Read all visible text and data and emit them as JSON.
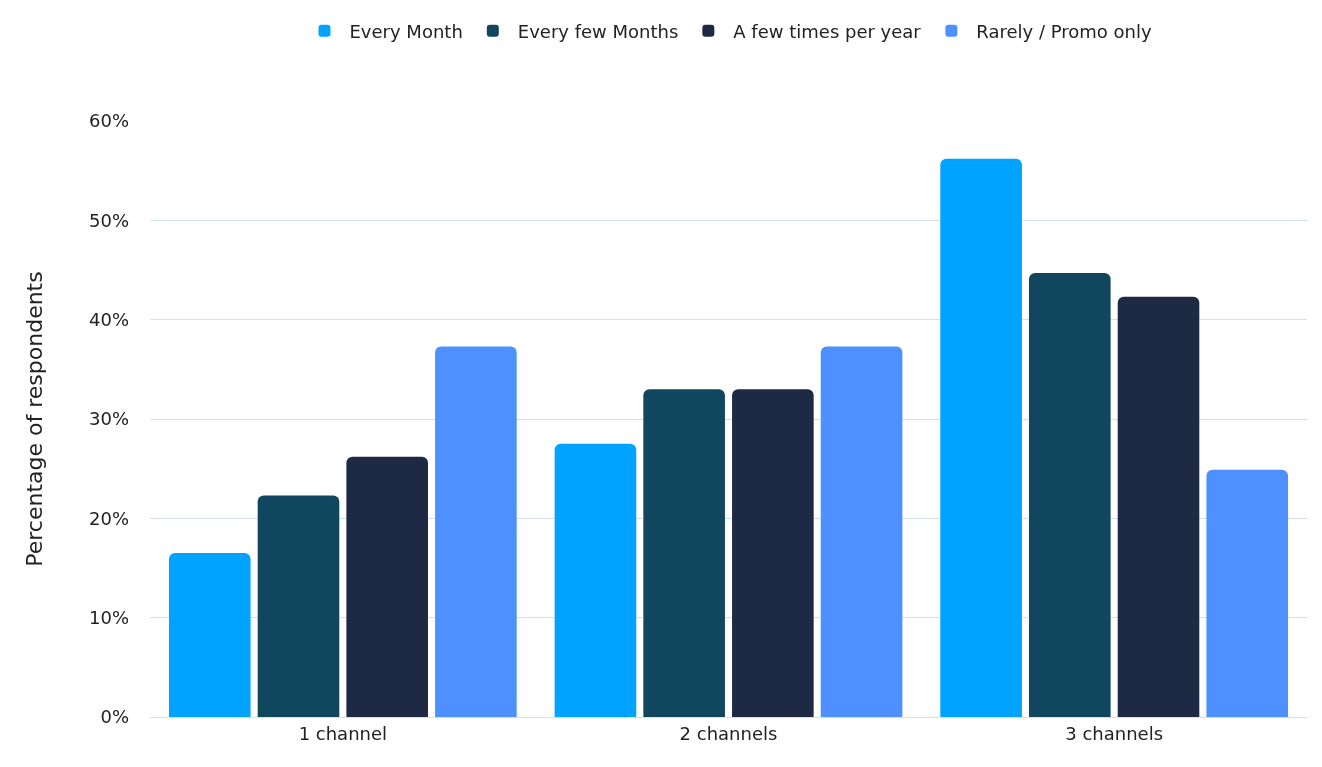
{
  "chart_data": {
    "type": "bar",
    "ylabel": "Percentage of respondents",
    "categories": [
      "1 channel",
      "2 channels",
      "3 channels"
    ],
    "series": [
      {
        "name": "Every Month",
        "color": "#00a3ff",
        "values": [
          16.5,
          27.5,
          56.2
        ]
      },
      {
        "name": "Every few Months",
        "color": "#10475e",
        "values": [
          22.3,
          33,
          44.7
        ]
      },
      {
        "name": "A few times per year",
        "color": "#1e2a44",
        "values": [
          26.2,
          33,
          42.3
        ]
      },
      {
        "name": "Rarely / Promo only",
        "color": "#4d90fe",
        "values": [
          37.3,
          37.3,
          24.9
        ]
      }
    ],
    "ylim": [
      0,
      60
    ],
    "yticks": [
      {
        "value": 0,
        "label": "0%"
      },
      {
        "value": 10,
        "label": "10%"
      },
      {
        "value": 20,
        "label": "20%"
      },
      {
        "value": 30,
        "label": "30%"
      },
      {
        "value": 40,
        "label": "40%"
      },
      {
        "value": 50,
        "label": "50%"
      },
      {
        "value": 60,
        "label": "60%"
      }
    ],
    "grid": "y",
    "legend": "top"
  }
}
